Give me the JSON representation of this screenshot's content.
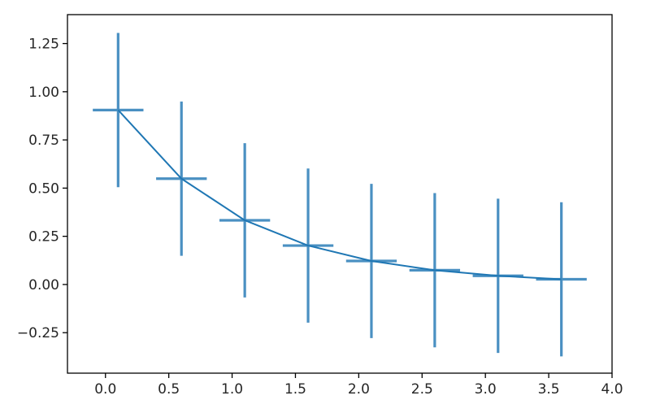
{
  "chart_data": {
    "type": "line",
    "title": "",
    "xlabel": "",
    "ylabel": "",
    "xlim": [
      -0.3,
      4.0
    ],
    "ylim": [
      -0.46,
      1.4
    ],
    "x_ticks": [
      0.0,
      0.5,
      1.0,
      1.5,
      2.0,
      2.5,
      3.0,
      3.5,
      4.0
    ],
    "x_tick_labels": [
      "0.0",
      "0.5",
      "1.0",
      "1.5",
      "2.0",
      "2.5",
      "3.0",
      "3.5",
      "4.0"
    ],
    "y_ticks": [
      -0.25,
      0.0,
      0.25,
      0.5,
      0.75,
      1.0,
      1.25
    ],
    "y_tick_labels": [
      "−0.25",
      "0.00",
      "0.25",
      "0.50",
      "0.75",
      "1.00",
      "1.25"
    ],
    "grid": false,
    "series": [
      {
        "x": [
          0.1,
          0.6,
          1.1,
          1.6,
          2.1,
          2.6,
          3.1,
          3.6
        ],
        "y": [
          0.905,
          0.549,
          0.333,
          0.202,
          0.122,
          0.074,
          0.045,
          0.027
        ],
        "xerr": 0.2,
        "yerr": 0.4,
        "color": "#4a90c2"
      }
    ],
    "line_color": "#1f77b4"
  }
}
